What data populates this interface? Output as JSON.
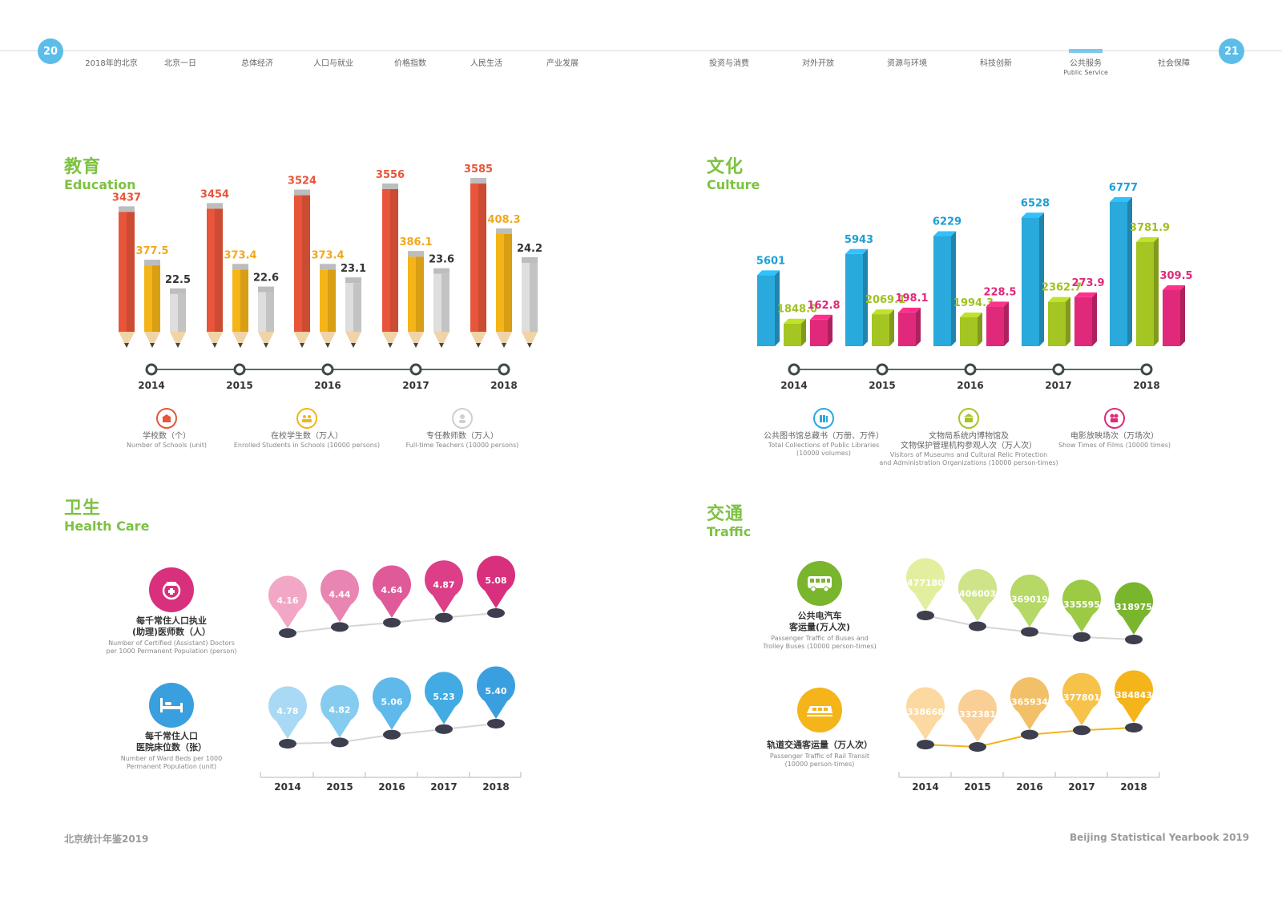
{
  "page": {
    "left_number": "20",
    "right_number": "21",
    "footer_left": "北京统计年鉴2019",
    "footer_right": "Beijing Statistical Yearbook 2019"
  },
  "nav": [
    {
      "label": "2018年的北京"
    },
    {
      "label": "北京一日"
    },
    {
      "label": "总体经济"
    },
    {
      "label": "人口与就业"
    },
    {
      "label": "价格指数"
    },
    {
      "label": "人民生活"
    },
    {
      "label": "产业发展"
    },
    {
      "label": "投资与消费"
    },
    {
      "label": "对外开放"
    },
    {
      "label": "资源与环境"
    },
    {
      "label": "科技创新"
    },
    {
      "label": "公共服务",
      "sub": "Public Service",
      "active": true
    },
    {
      "label": "社会保障"
    }
  ],
  "sections": {
    "education": {
      "cn": "教育",
      "en": "Education"
    },
    "culture": {
      "cn": "文化",
      "en": "Culture"
    },
    "health": {
      "cn": "卫生",
      "en": "Health Care"
    },
    "traffic": {
      "cn": "交通",
      "en": "Traffic"
    }
  },
  "colors": {
    "red": "#e8553a",
    "yellow": "#f5b417",
    "gray": "#d9d9d9",
    "blue": "#29a9dc",
    "green": "#a5c523",
    "pink": "#e0297a",
    "magenta": "#d8307d",
    "skyblue": "#3a9fdf",
    "lightgreen": "#7ab52e",
    "gold": "#f4b41a"
  },
  "chart_data": [
    {
      "id": "education",
      "type": "bar",
      "title": "教育 Education",
      "categories": [
        "2014",
        "2015",
        "2016",
        "2017",
        "2018"
      ],
      "series": [
        {
          "name": "学校数（个）",
          "name_en": "Number of Schools (unit)",
          "color": "#e8553a",
          "label_color": "#e8553a",
          "values": [
            3437,
            3454,
            3524,
            3556,
            3585
          ],
          "labels": [
            "3437",
            "3454",
            "3524",
            "3556",
            "3585"
          ]
        },
        {
          "name": "在校学生数（万人）",
          "name_en": "Enrolled Students in Schools (10000 persons)",
          "color": "#f5b417",
          "label_color": "#f2a81d",
          "values": [
            377.5,
            373.4,
            373.4,
            386.1,
            408.3
          ],
          "labels": [
            "377.5",
            "373.4",
            "373.4",
            "386.1",
            "408.3"
          ]
        },
        {
          "name": "专任教师数（万人）",
          "name_en": "Full-time Teachers (10000 persons)",
          "color": "#dedede",
          "label_color": "#333333",
          "values": [
            22.5,
            22.6,
            23.1,
            23.6,
            24.2
          ],
          "labels": [
            "22.5",
            "22.6",
            "23.1",
            "23.6",
            "24.2"
          ]
        }
      ]
    },
    {
      "id": "culture",
      "type": "bar",
      "title": "文化 Culture",
      "categories": [
        "2014",
        "2015",
        "2016",
        "2017",
        "2018"
      ],
      "series": [
        {
          "name": "公共图书馆总藏书（万册、万件）",
          "name_en": "Total Collections of Public Libraries (10000 volumes)",
          "color": "#29a9dc",
          "label_color": "#1e9fd8",
          "values": [
            5601,
            5943,
            6229,
            6528,
            6777
          ],
          "labels": [
            "5601",
            "5943",
            "6229",
            "6528",
            "6777"
          ]
        },
        {
          "name": "文物局系统内博物馆及文物保护管理机构参观人次（万人次）",
          "name_en": "Visitors of Museums and Cultural Relic Protection and Administration Organizations (10000 person-times)",
          "color": "#a5c523",
          "label_color": "#9fc21f",
          "values": [
            1848.0,
            2069.1,
            1994.3,
            2362.7,
            3781.9
          ],
          "labels": [
            "1848.0",
            "2069.1",
            "1994.3",
            "2362.7",
            "3781.9"
          ]
        },
        {
          "name": "电影放映场次（万场次）",
          "name_en": "Show Times of Films (10000 times)",
          "color": "#e0297a",
          "label_color": "#e0297a",
          "values": [
            162.8,
            198.1,
            228.5,
            273.9,
            309.5
          ],
          "labels": [
            "162.8",
            "198.1",
            "228.5",
            "273.9",
            "309.5"
          ]
        }
      ]
    },
    {
      "id": "health",
      "type": "line",
      "title": "卫生 Health Care",
      "x": [
        "2014",
        "2015",
        "2016",
        "2017",
        "2018"
      ],
      "series": [
        {
          "name": "每千常住人口执业(助理)医师数（人）",
          "name_en": "Number of Certified (Assistant) Doctors per 1000 Permanent Population (person)",
          "color": "#d8307d",
          "values": [
            4.16,
            4.44,
            4.64,
            4.87,
            5.08
          ],
          "labels": [
            "4.16",
            "4.44",
            "4.64",
            "4.87",
            "5.08"
          ]
        },
        {
          "name": "每千常住人口医院床位数（张）",
          "name_en": "Number of Ward Beds per 1000 Permanent Population (unit)",
          "color": "#3a9fdf",
          "values": [
            4.78,
            4.82,
            5.06,
            5.23,
            5.4
          ],
          "labels": [
            "4.78",
            "4.82",
            "5.06",
            "5.23",
            "5.40"
          ]
        }
      ]
    },
    {
      "id": "traffic",
      "type": "line",
      "title": "交通 Traffic",
      "x": [
        "2014",
        "2015",
        "2016",
        "2017",
        "2018"
      ],
      "series": [
        {
          "name": "公共电汽车客运量(万人次)",
          "name_en": "Passenger Traffic of Buses and Trolley Buses (10000 person-times)",
          "color": "#7ab52e",
          "values": [
            477180,
            406003,
            369019,
            335595,
            318975
          ],
          "labels": [
            "477180",
            "406003",
            "369019",
            "335595",
            "318975"
          ]
        },
        {
          "name": "轨道交通客运量（万人次）",
          "name_en": "Passenger Traffic of Rail Transit (10000 person-times)",
          "color": "#f4b41a",
          "values": [
            338668,
            332381,
            365934,
            377801,
            384843
          ],
          "labels": [
            "338668",
            "332381",
            "365934",
            "377801",
            "384843"
          ]
        }
      ]
    }
  ],
  "health_labels": [
    {
      "cn1": "每千常住人口执业",
      "cn2": "(助理)医师数（人）",
      "en1": "Number of Certified (Assistant) Doctors",
      "en2": "per 1000 Permanent Population (person)"
    },
    {
      "cn1": "每千常住人口",
      "cn2": "医院床位数（张）",
      "en1": "Number of Ward Beds per 1000",
      "en2": "Permanent Population (unit)"
    }
  ],
  "traffic_labels": [
    {
      "cn1": "公共电汽车",
      "cn2": "客运量(万人次)",
      "en1": "Passenger Traffic of Buses and",
      "en2": "Trolley Buses (10000 person-times)"
    },
    {
      "cn1": "轨道交通客运量（万人次）",
      "cn2": "",
      "en1": "Passenger Traffic of Rail Transit",
      "en2": "(10000 person-times)"
    }
  ],
  "edu_legend": [
    {
      "cn": "学校数（个）",
      "en": "Number of Schools (unit)"
    },
    {
      "cn": "在校学生数（万人）",
      "en": "Enrolled Students in Schools (10000 persons)"
    },
    {
      "cn": "专任教师数（万人）",
      "en": "Full-time Teachers (10000 persons)"
    }
  ],
  "cul_legend": [
    {
      "cn": "公共图书馆总藏书（万册、万件）",
      "en1": "Total Collections of Public Libraries",
      "en2": "(10000 volumes)"
    },
    {
      "cn1": "文物局系统内博物馆及",
      "cn2": "文物保护管理机构参观人次（万人次）",
      "en1": "Visitors of Museums and Cultural Relic Protection",
      "en2": "and Administration Organizations (10000 person-times)"
    },
    {
      "cn": "电影放映场次（万场次）",
      "en": "Show Times of Films (10000 times)"
    }
  ]
}
